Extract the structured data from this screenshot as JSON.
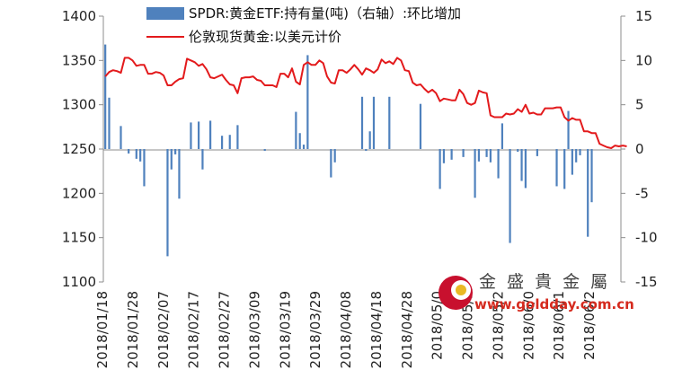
{
  "chart_data": {
    "type": "bar+line",
    "series": [
      {
        "name": "SPDR:黄金ETF:持有量(吨)（右轴）:环比增加",
        "kind": "bar",
        "axis": "right",
        "color": "#4f81bd",
        "points": [
          {
            "x": 0,
            "y": 11.8
          },
          {
            "x": 1,
            "y": 5.8
          },
          {
            "x": 4,
            "y": 2.6
          },
          {
            "x": 6,
            "y": -0.5
          },
          {
            "x": 8,
            "y": -1.1
          },
          {
            "x": 9,
            "y": -1.4
          },
          {
            "x": 10,
            "y": -4.2
          },
          {
            "x": 16,
            "y": -12.1
          },
          {
            "x": 17,
            "y": -2.3
          },
          {
            "x": 18,
            "y": -0.6
          },
          {
            "x": 19,
            "y": -5.6
          },
          {
            "x": 22,
            "y": 3.0
          },
          {
            "x": 24,
            "y": 3.1
          },
          {
            "x": 25,
            "y": -2.3
          },
          {
            "x": 27,
            "y": 3.2
          },
          {
            "x": 30,
            "y": 1.5
          },
          {
            "x": 32,
            "y": 1.6
          },
          {
            "x": 34,
            "y": 2.7
          },
          {
            "x": 41,
            "y": -0.2
          },
          {
            "x": 49,
            "y": 4.2
          },
          {
            "x": 50,
            "y": 1.8
          },
          {
            "x": 51,
            "y": 0.5
          },
          {
            "x": 52,
            "y": 10.6
          },
          {
            "x": 58,
            "y": -3.2
          },
          {
            "x": 59,
            "y": -1.5
          },
          {
            "x": 66,
            "y": 5.9
          },
          {
            "x": 67,
            "y": -0.2
          },
          {
            "x": 68,
            "y": 2.0
          },
          {
            "x": 69,
            "y": 5.9
          },
          {
            "x": 73,
            "y": 5.9
          },
          {
            "x": 81,
            "y": 5.1
          },
          {
            "x": 86,
            "y": -4.5
          },
          {
            "x": 87,
            "y": -1.6
          },
          {
            "x": 89,
            "y": -1.2
          },
          {
            "x": 92,
            "y": -0.9
          },
          {
            "x": 95,
            "y": -5.5
          },
          {
            "x": 96,
            "y": -1.4
          },
          {
            "x": 98,
            "y": -0.9
          },
          {
            "x": 99,
            "y": -1.5
          },
          {
            "x": 101,
            "y": -3.3
          },
          {
            "x": 102,
            "y": 2.9
          },
          {
            "x": 104,
            "y": -10.6
          },
          {
            "x": 106,
            "y": -0.3
          },
          {
            "x": 107,
            "y": -3.6
          },
          {
            "x": 108,
            "y": -4.4
          },
          {
            "x": 111,
            "y": -0.8
          },
          {
            "x": 116,
            "y": -4.2
          },
          {
            "x": 118,
            "y": -4.5
          },
          {
            "x": 119,
            "y": 4.3
          },
          {
            "x": 120,
            "y": -2.9
          },
          {
            "x": 121,
            "y": -1.5
          },
          {
            "x": 122,
            "y": -0.7
          },
          {
            "x": 124,
            "y": -9.9
          },
          {
            "x": 125,
            "y": -6.0
          }
        ]
      },
      {
        "name": "伦敦现货黄金:以美元计价",
        "kind": "line",
        "axis": "left",
        "color": "#e31a1c",
        "values": [
          1332,
          1337,
          1339,
          1338,
          1336,
          1353,
          1353,
          1350,
          1344,
          1345,
          1345,
          1335,
          1335,
          1337,
          1336,
          1333,
          1322,
          1322,
          1326,
          1329,
          1330,
          1352,
          1350,
          1348,
          1344,
          1346,
          1340,
          1331,
          1330,
          1332,
          1334,
          1328,
          1323,
          1322,
          1313,
          1330,
          1331,
          1331,
          1332,
          1328,
          1327,
          1322,
          1322,
          1322,
          1320,
          1335,
          1335,
          1331,
          1341,
          1326,
          1323,
          1345,
          1348,
          1345,
          1345,
          1350,
          1347,
          1332,
          1325,
          1324,
          1339,
          1339,
          1336,
          1340,
          1345,
          1340,
          1334,
          1341,
          1339,
          1336,
          1340,
          1351,
          1347,
          1349,
          1346,
          1353,
          1350,
          1339,
          1338,
          1325,
          1322,
          1323,
          1318,
          1314,
          1317,
          1313,
          1304,
          1307,
          1306,
          1305,
          1305,
          1317,
          1312,
          1302,
          1300,
          1302,
          1316,
          1314,
          1313,
          1288,
          1286,
          1286,
          1286,
          1290,
          1289,
          1290,
          1295,
          1292,
          1300,
          1290,
          1291,
          1289,
          1289,
          1296,
          1296,
          1296,
          1297,
          1297,
          1286,
          1282,
          1285,
          1283,
          1283,
          1270,
          1270,
          1268,
          1268,
          1256,
          1254,
          1252,
          1251,
          1254,
          1253,
          1254,
          1253
        ]
      }
    ],
    "x_count": 133,
    "x_tick_labels": [
      "2018/01/18",
      "2018/01/28",
      "2018/02/07",
      "2018/02/17",
      "2018/02/27",
      "2018/03/09",
      "2018/03/19",
      "2018/03/29",
      "2018/04/08",
      "2018/04/18",
      "2018/04/28",
      "2018/05/0",
      "2018/05/1",
      "2018/05/2",
      "2018/06/0",
      "2018/06/1",
      "2018/06/2"
    ],
    "y_left": {
      "min": 1100,
      "max": 1400,
      "ticks": [
        1400,
        1350,
        1300,
        1250,
        1200,
        1150,
        1100
      ]
    },
    "y_right": {
      "min": -15,
      "max": 15,
      "ticks": [
        15,
        10,
        5,
        0,
        -5,
        -10,
        -15
      ]
    },
    "legend_placement": "top-center",
    "grid": false
  },
  "watermark": {
    "brand": "金 盛 貴 金 屬",
    "url": "www.goldday.com.cn"
  }
}
